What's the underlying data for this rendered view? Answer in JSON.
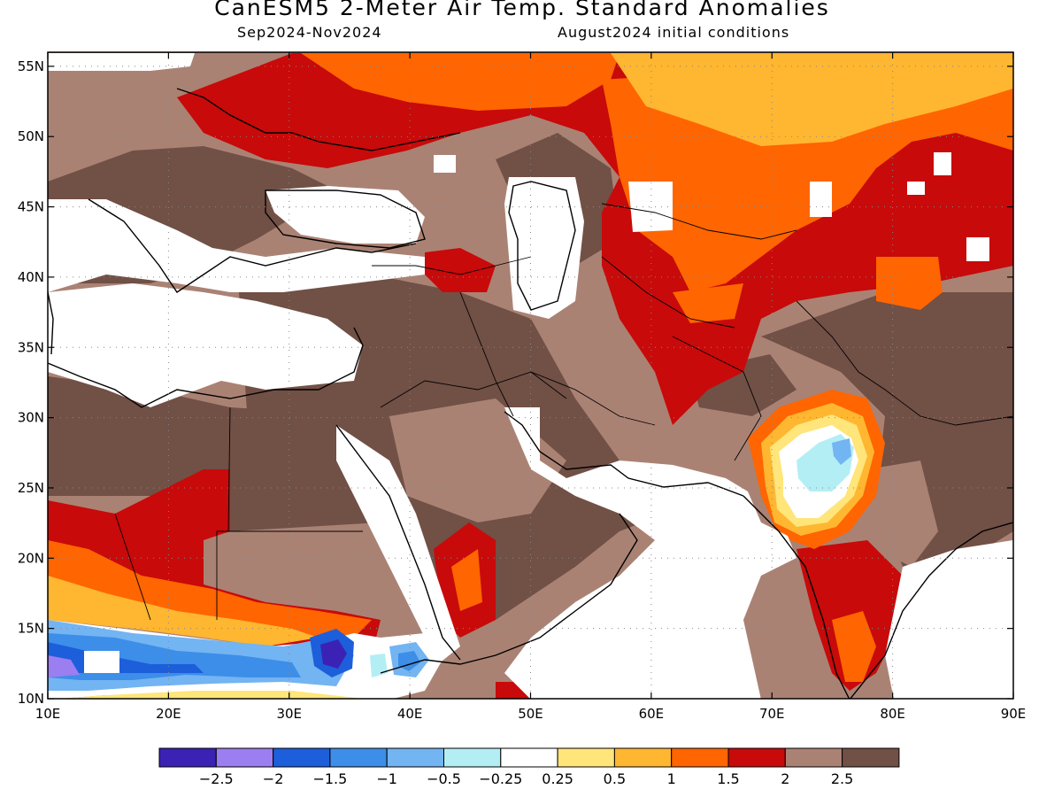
{
  "header": {
    "title": "CanESM5 2-Meter Air Temp. Standard Anomalies",
    "period": "Sep2024-Nov2024",
    "init": "August2024 initial conditions"
  },
  "map": {
    "lon_range": [
      10,
      90
    ],
    "lat_range": [
      10,
      56
    ],
    "lon_ticks": [
      "10E",
      "20E",
      "30E",
      "40E",
      "50E",
      "60E",
      "70E",
      "80E",
      "90E"
    ],
    "lat_ticks": [
      "10N",
      "15N",
      "20N",
      "25N",
      "30N",
      "35N",
      "40N",
      "45N",
      "50N",
      "55N"
    ],
    "grid": "dotted"
  },
  "colorbar": {
    "colors": [
      "#3b22b4",
      "#9b7ef0",
      "#1d5edb",
      "#3c8ee8",
      "#73b4f2",
      "#b3eef5",
      "#ffffff",
      "#ffe57a",
      "#ffb630",
      "#ff6500",
      "#c80a0a",
      "#aa8274",
      "#715046"
    ],
    "labels": [
      "-2.5",
      "-2",
      "-1.5",
      "-1",
      "-0.5",
      "-0.25",
      "0.25",
      "0.5",
      "1",
      "1.5",
      "2",
      "2.5"
    ]
  }
}
